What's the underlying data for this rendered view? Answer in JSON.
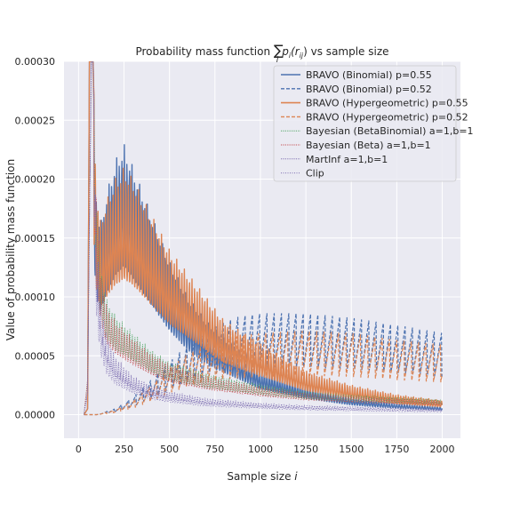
{
  "chart_data": {
    "type": "line",
    "title_prefix": "Probability mass function ",
    "title_sum": "∑",
    "title_sum_sub": "i",
    "title_p": "p",
    "title_p_sub": "i",
    "title_r": "(r",
    "title_r_sub": "ij",
    "title_close": ")",
    "title_suffix": " vs sample size",
    "xlabel_prefix": "Sample size ",
    "xlabel_var": "i",
    "ylabel": "Value of probability mass function",
    "xlim": [
      -80,
      2100
    ],
    "ylim": [
      -2e-05,
      0.0003
    ],
    "xticks": [
      0,
      250,
      500,
      750,
      1000,
      1250,
      1500,
      1750,
      2000
    ],
    "yticks": [
      0.0,
      5e-05,
      0.0001,
      0.00015,
      0.0002,
      0.00025,
      0.0003
    ],
    "ytick_labels": [
      "0.00000",
      "0.00005",
      "0.00010",
      "0.00015",
      "0.00020",
      "0.00025",
      "0.00030"
    ],
    "grid": true,
    "legend_position": "top-right",
    "colors": {
      "background": "#eaeaf2",
      "grid": "#ffffff",
      "blue": "#4c72b0",
      "orange": "#dd8452",
      "green": "#55a868",
      "red": "#c44e52",
      "purple": "#8172b3"
    },
    "series": [
      {
        "name": "BRAVO (Binomial) p=0.55",
        "color": "#4c72b0",
        "style": "solid",
        "x": [
          30,
          50,
          60,
          70,
          80,
          90,
          100,
          120,
          150,
          200,
          250,
          300,
          400,
          500,
          600,
          700,
          800,
          1000,
          1250,
          1500,
          1750,
          2000
        ],
        "y": [
          0.0,
          5e-06,
          0.0003,
          0.0003,
          0.0003,
          0.00022,
          0.00018,
          0.00016,
          0.000185,
          0.000215,
          0.00023,
          0.00021,
          0.00017,
          0.00013,
          0.0001,
          8e-05,
          6.5e-05,
          4e-05,
          2.5e-05,
          1.5e-05,
          1e-05,
          7e-06
        ]
      },
      {
        "name": "BRAVO (Binomial) p=0.52",
        "color": "#4c72b0",
        "style": "dashed",
        "x": [
          30,
          100,
          200,
          300,
          400,
          500,
          600,
          700,
          800,
          900,
          1000,
          1250,
          1500,
          1750,
          2000
        ],
        "y": [
          0.0,
          0.0,
          5e-06,
          1.5e-05,
          3e-05,
          4.5e-05,
          6e-05,
          7e-05,
          8e-05,
          8.5e-05,
          8.7e-05,
          8.7e-05,
          8.3e-05,
          7.7e-05,
          7e-05
        ]
      },
      {
        "name": "BRAVO (Hypergeometric) p=0.55",
        "color": "#dd8452",
        "style": "solid",
        "x": [
          30,
          50,
          60,
          70,
          80,
          90,
          100,
          120,
          150,
          200,
          250,
          300,
          400,
          500,
          600,
          700,
          800,
          1000,
          1250,
          1500,
          1750,
          2000
        ],
        "y": [
          0.0,
          5e-06,
          0.0003,
          0.0003,
          0.0003,
          0.00023,
          0.00019,
          0.000165,
          0.00018,
          0.0002,
          0.00021,
          0.0002,
          0.00017,
          0.00014,
          0.00012,
          0.0001,
          8e-05,
          6e-05,
          3.7e-05,
          2.5e-05,
          1.7e-05,
          1.2e-05
        ]
      },
      {
        "name": "BRAVO (Hypergeometric) p=0.52",
        "color": "#dd8452",
        "style": "dashed",
        "x": [
          30,
          100,
          200,
          300,
          400,
          500,
          600,
          700,
          800,
          900,
          1000,
          1250,
          1500,
          1750,
          2000
        ],
        "y": [
          0.0,
          0.0,
          4e-06,
          1.2e-05,
          2.5e-05,
          4e-05,
          5.2e-05,
          6e-05,
          6.5e-05,
          6.8e-05,
          7e-05,
          7.2e-05,
          7e-05,
          6.4e-05,
          6e-05
        ]
      },
      {
        "name": "Bayesian (BetaBinomial) a=1,b=1",
        "color": "#55a868",
        "style": "dotted",
        "x": [
          30,
          50,
          70,
          80,
          100,
          120,
          150,
          200,
          300,
          400,
          500,
          700,
          1000,
          1250,
          1500,
          1750,
          2000
        ],
        "y": [
          0.0,
          3e-05,
          0.0003,
          0.0003,
          0.00018,
          0.00013,
          0.0001,
          8.5e-05,
          7e-05,
          5.5e-05,
          4.5e-05,
          3.5e-05,
          2.6e-05,
          2e-05,
          1.7e-05,
          1.5e-05,
          1.3e-05
        ]
      },
      {
        "name": "Bayesian (Beta) a=1,b=1",
        "color": "#c44e52",
        "style": "dotted",
        "x": [
          30,
          50,
          70,
          80,
          100,
          120,
          150,
          200,
          300,
          400,
          500,
          700,
          1000,
          1250,
          1500,
          1750,
          2000
        ],
        "y": [
          0.0,
          3e-05,
          0.0003,
          0.0003,
          0.000175,
          0.000125,
          9.5e-05,
          8e-05,
          6.5e-05,
          5.2e-05,
          4.3e-05,
          3.3e-05,
          2.4e-05,
          1.9e-05,
          1.6e-05,
          1.4e-05,
          1.2e-05
        ]
      },
      {
        "name": "MartInf a=1,b=1",
        "color": "#8172b3",
        "style": "dotted",
        "x": [
          30,
          50,
          70,
          80,
          100,
          120,
          150,
          200,
          300,
          400,
          500,
          700,
          1000,
          1250,
          1500,
          1750,
          2000
        ],
        "y": [
          0.0,
          2e-05,
          0.0003,
          0.0003,
          0.00015,
          0.0001,
          7e-05,
          5e-05,
          3.3e-05,
          2.5e-05,
          2e-05,
          1.4e-05,
          1e-05,
          8e-06,
          7e-06,
          6e-06,
          5e-06
        ]
      },
      {
        "name": "Clip",
        "color": "#8172b3",
        "style": "dotted-thin",
        "x": [
          30,
          50,
          70,
          80,
          100,
          120,
          150,
          200,
          300,
          400,
          500,
          700,
          1000,
          1250,
          1500,
          1750,
          2000
        ],
        "y": [
          0.0,
          2e-05,
          0.0003,
          0.0003,
          0.00012,
          8e-05,
          5.5e-05,
          4e-05,
          2.8e-05,
          2e-05,
          1.6e-05,
          1.1e-05,
          8e-06,
          6e-06,
          5e-06,
          4e-06,
          3.5e-06
        ]
      }
    ]
  }
}
